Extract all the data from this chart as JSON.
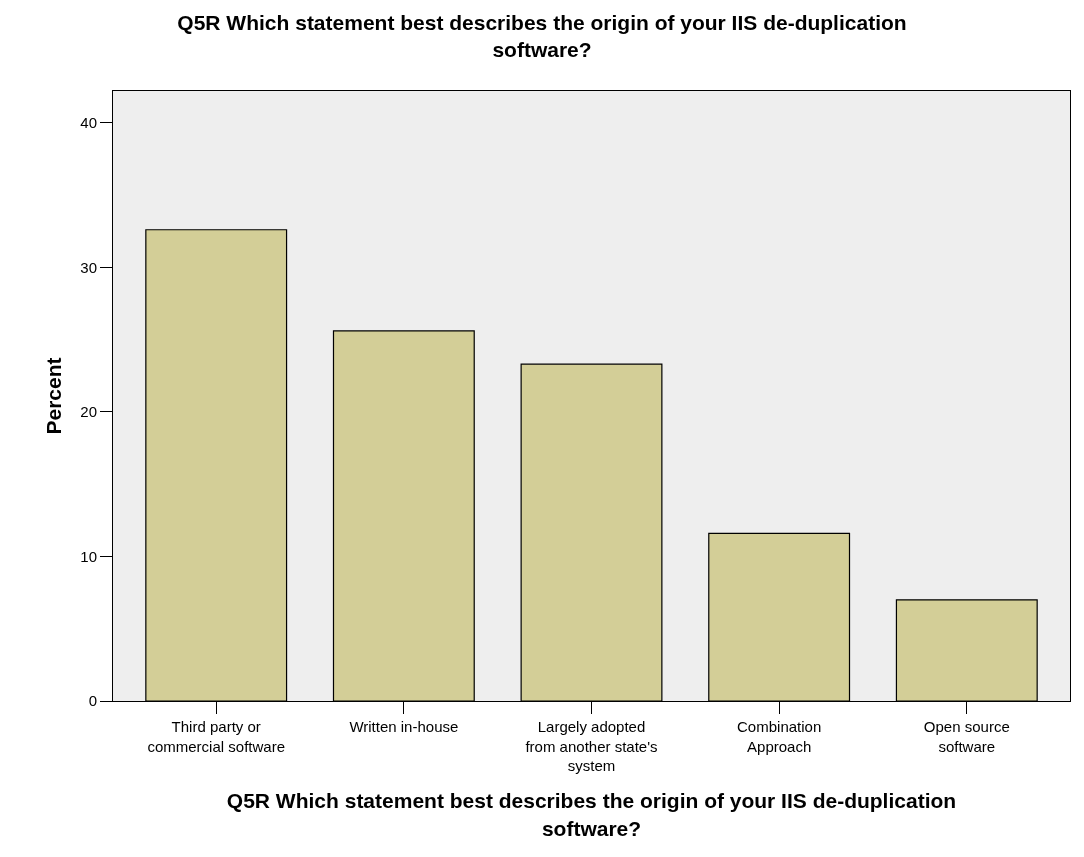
{
  "chart_data": {
    "type": "bar",
    "title": "Q5R Which statement best describes the origin of your IIS de-duplication\nsoftware?",
    "xlabel": "Q5R Which statement best describes the origin of your IIS de-duplication\nsoftware?",
    "ylabel": "Percent",
    "categories": [
      "Third party or\ncommercial software",
      "Written in-house",
      "Largely adopted\nfrom another state's\nsystem",
      "Combination\nApproach",
      "Open source\nsoftware"
    ],
    "values": [
      32.6,
      25.6,
      23.3,
      11.6,
      7.0
    ],
    "color": "#d3ce97",
    "ylim": [
      0,
      42.2
    ],
    "yticks": [
      0,
      10,
      20,
      30,
      40
    ],
    "grid": false,
    "legend": false
  }
}
